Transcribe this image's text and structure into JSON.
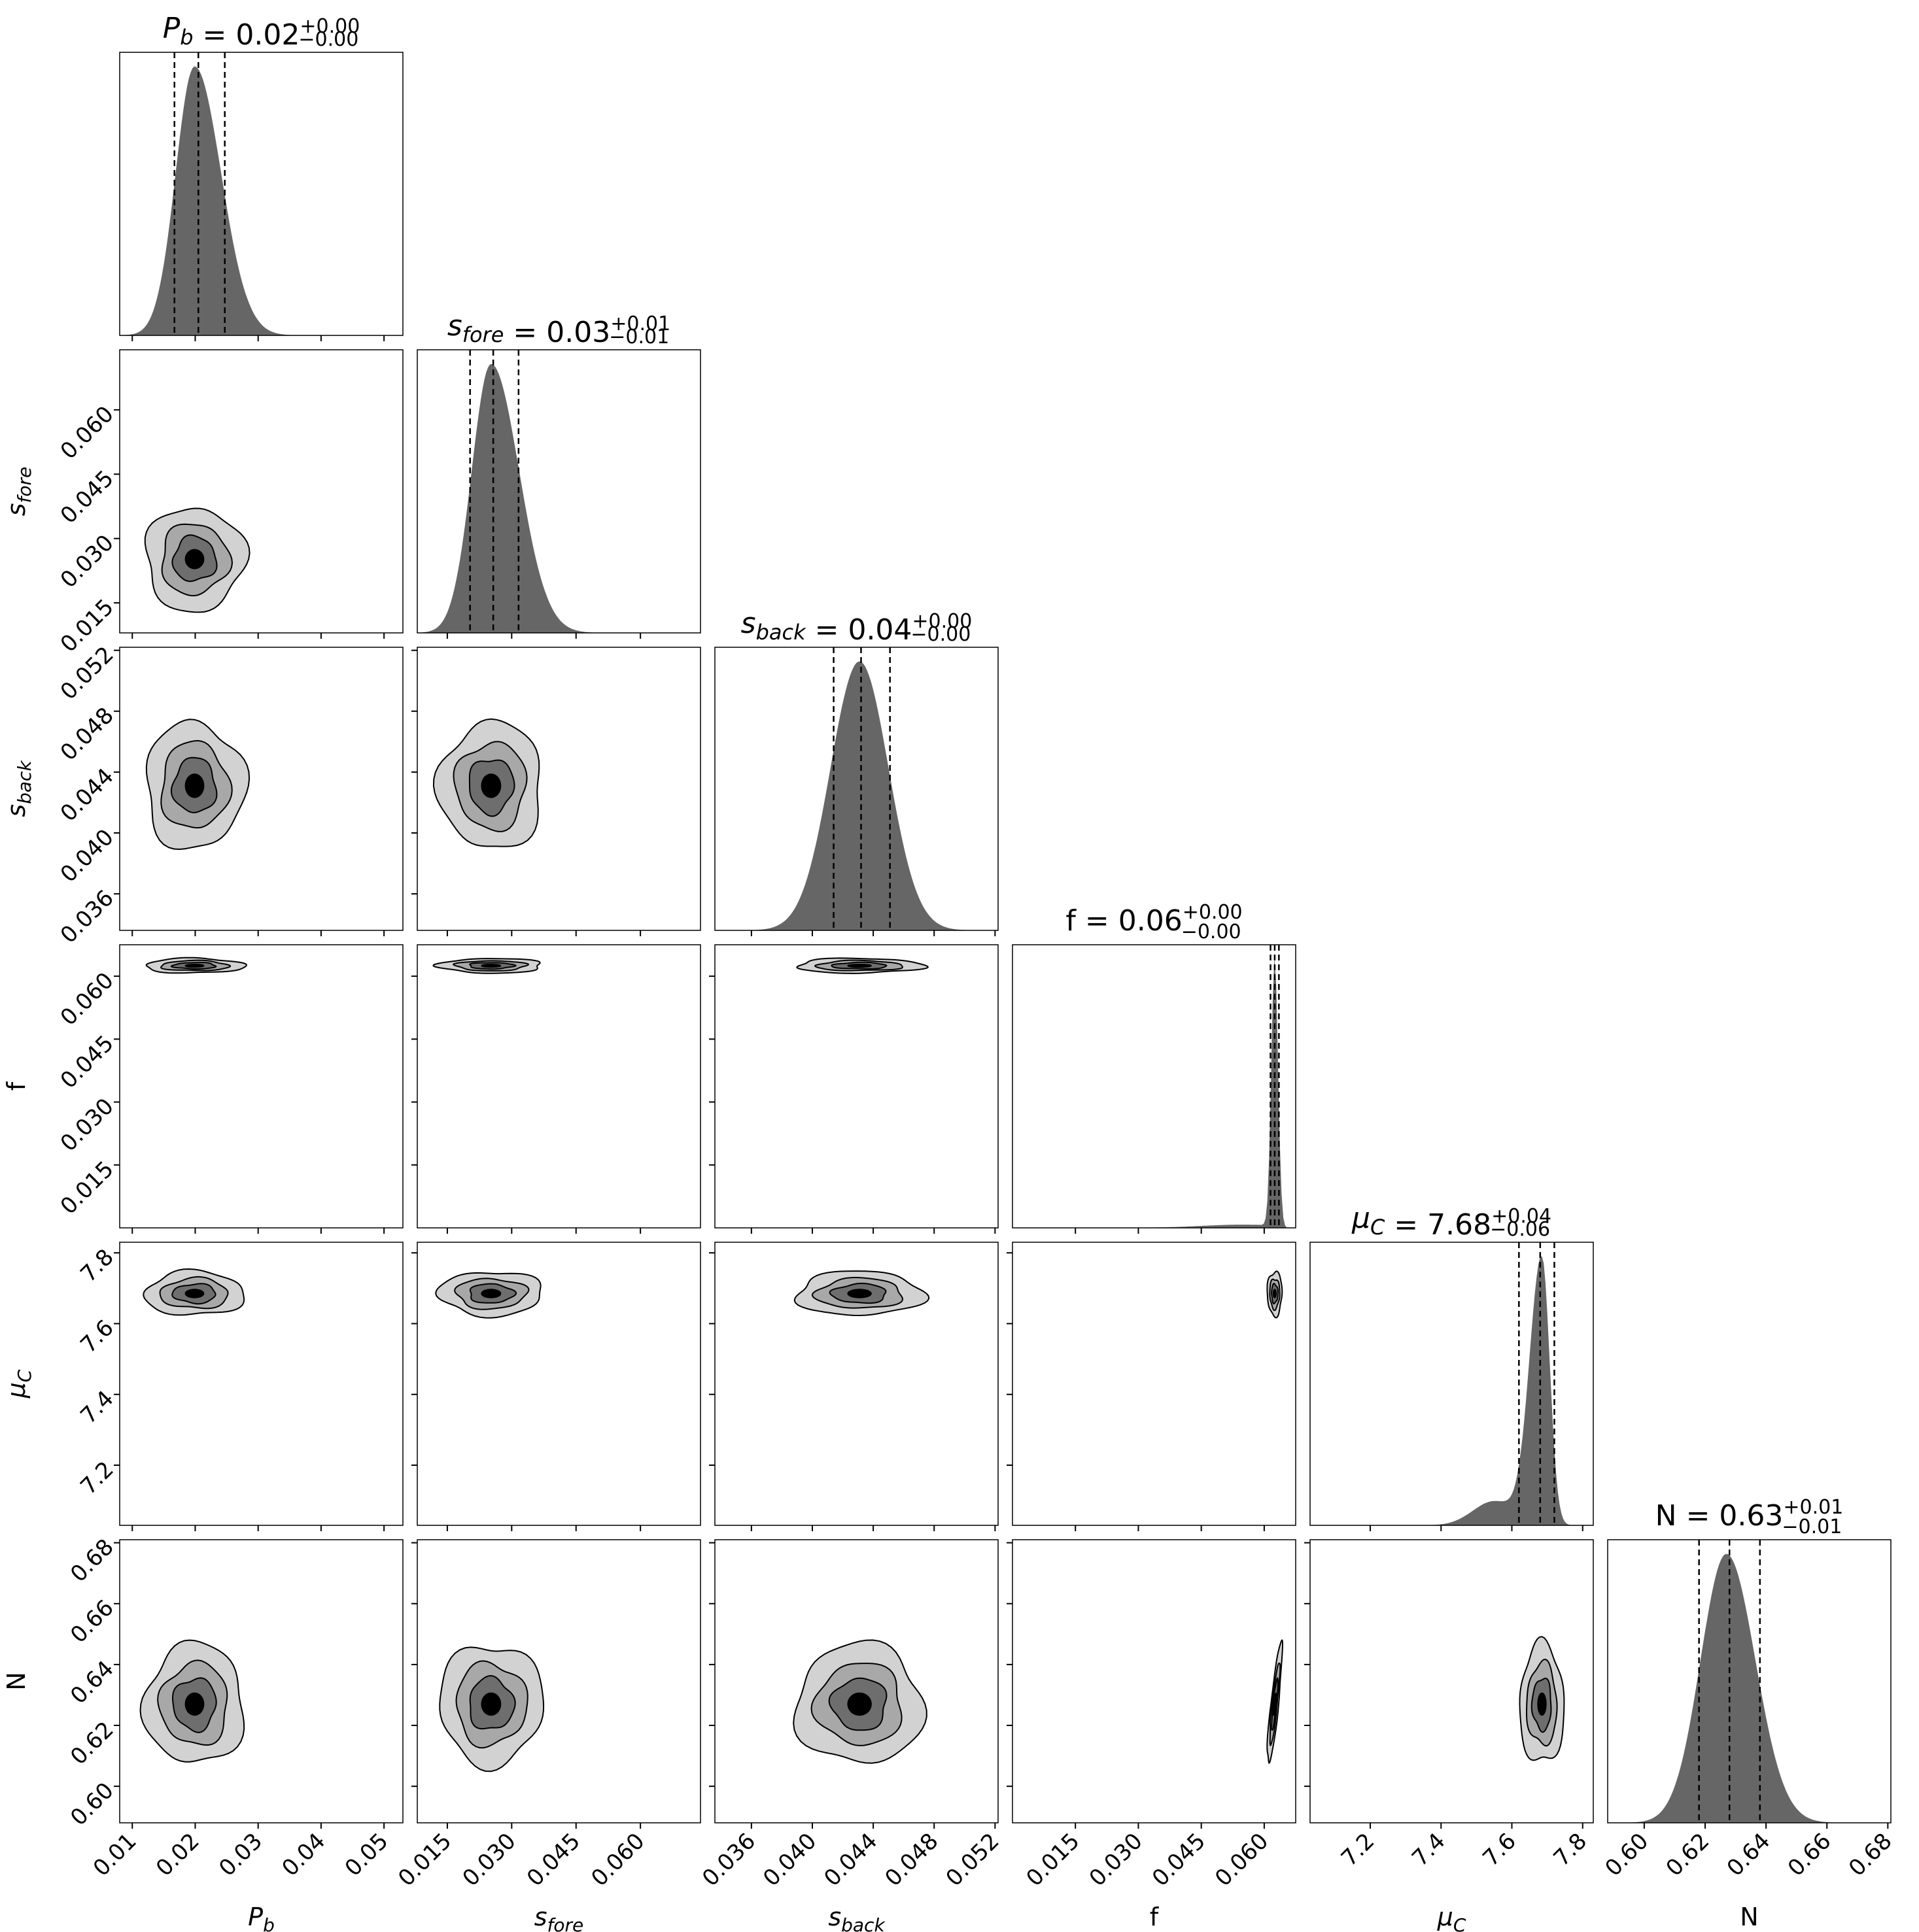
{
  "chart_data": {
    "type": "corner",
    "parameters": [
      {
        "key": "Pb",
        "label_main": "P",
        "label_sub": "b",
        "label_style": "italic",
        "title_value": "0.02",
        "title_plus": "+0.00",
        "title_minus": "−0.00",
        "range": [
          0.008,
          0.053
        ],
        "ticks": [
          0.01,
          0.02,
          0.03,
          0.04,
          0.05
        ],
        "tick_labels": [
          "0.01",
          "0.02",
          "0.03",
          "0.04",
          "0.05"
        ],
        "quantiles": [
          0.0167,
          0.0205,
          0.0247
        ],
        "marginal": {
          "mode": 0.0199,
          "sigma_left": 0.003,
          "sigma_right": 0.0042
        }
      },
      {
        "key": "sfore",
        "label_main": "s",
        "label_sub": "fore",
        "label_style": "italic",
        "title_value": "0.03",
        "title_plus": "+0.01",
        "title_minus": "−0.01",
        "range": [
          0.008,
          0.074
        ],
        "ticks": [
          0.015,
          0.03,
          0.045,
          0.06
        ],
        "tick_labels": [
          "0.015",
          "0.030",
          "0.045",
          "0.060"
        ],
        "quantiles": [
          0.0203,
          0.0257,
          0.0316
        ],
        "marginal": {
          "mode": 0.0252,
          "sigma_left": 0.0045,
          "sigma_right": 0.0065
        }
      },
      {
        "key": "sback",
        "label_main": "s",
        "label_sub": "back",
        "label_style": "italic",
        "title_value": "0.04",
        "title_plus": "+0.00",
        "title_minus": "−0.00",
        "range": [
          0.0336,
          0.0522
        ],
        "ticks": [
          0.036,
          0.04,
          0.044,
          0.048,
          0.052
        ],
        "tick_labels": [
          "0.036",
          "0.040",
          "0.044",
          "0.048",
          "0.052"
        ],
        "quantiles": [
          0.0414,
          0.0432,
          0.0451
        ],
        "marginal": {
          "mode": 0.0431,
          "sigma_left": 0.0019,
          "sigma_right": 0.0019
        }
      },
      {
        "key": "f",
        "label_main": "f",
        "label_sub": "",
        "label_style": "normal",
        "title_value": "0.06",
        "title_plus": "+0.00",
        "title_minus": "−0.00",
        "range": [
          0.0,
          0.0675
        ],
        "ticks": [
          0.015,
          0.03,
          0.045,
          0.06
        ],
        "tick_labels": [
          "0.015",
          "0.030",
          "0.045",
          "0.060"
        ],
        "quantiles": [
          0.0615,
          0.0625,
          0.0635
        ],
        "marginal": {
          "mode": 0.0625,
          "sigma_left": 0.0008,
          "sigma_right": 0.0008
        }
      },
      {
        "key": "muC",
        "label_main": "μ",
        "label_sub": "C",
        "label_style": "italic",
        "title_value": "7.68",
        "title_plus": "+0.04",
        "title_minus": "−0.06",
        "range": [
          7.03,
          7.83
        ],
        "ticks": [
          7.2,
          7.4,
          7.6,
          7.8
        ],
        "tick_labels": [
          "7.2",
          "7.4",
          "7.6",
          "7.8"
        ],
        "quantiles": [
          7.62,
          7.68,
          7.72
        ],
        "marginal": {
          "mode": 7.685,
          "sigma_left": 0.035,
          "sigma_right": 0.022
        }
      },
      {
        "key": "N",
        "label_main": "N",
        "label_sub": "",
        "label_style": "normal",
        "title_value": "0.63",
        "title_plus": "+0.01",
        "title_minus": "−0.01",
        "range": [
          0.588,
          0.681
        ],
        "ticks": [
          0.6,
          0.62,
          0.64,
          0.66,
          0.68
        ],
        "tick_labels": [
          "0.60",
          "0.62",
          "0.64",
          "0.66",
          "0.68"
        ],
        "quantiles": [
          0.618,
          0.628,
          0.638
        ],
        "marginal": {
          "mode": 0.627,
          "sigma_left": 0.0085,
          "sigma_right": 0.0095
        }
      }
    ],
    "contour_fill_colors": [
      "#d2d2d2",
      "#a8a8a8",
      "#6e6e6e",
      "#000000"
    ],
    "histogram_fill_color": "#666666",
    "grid": false,
    "quantile_line_style": "dashed"
  }
}
